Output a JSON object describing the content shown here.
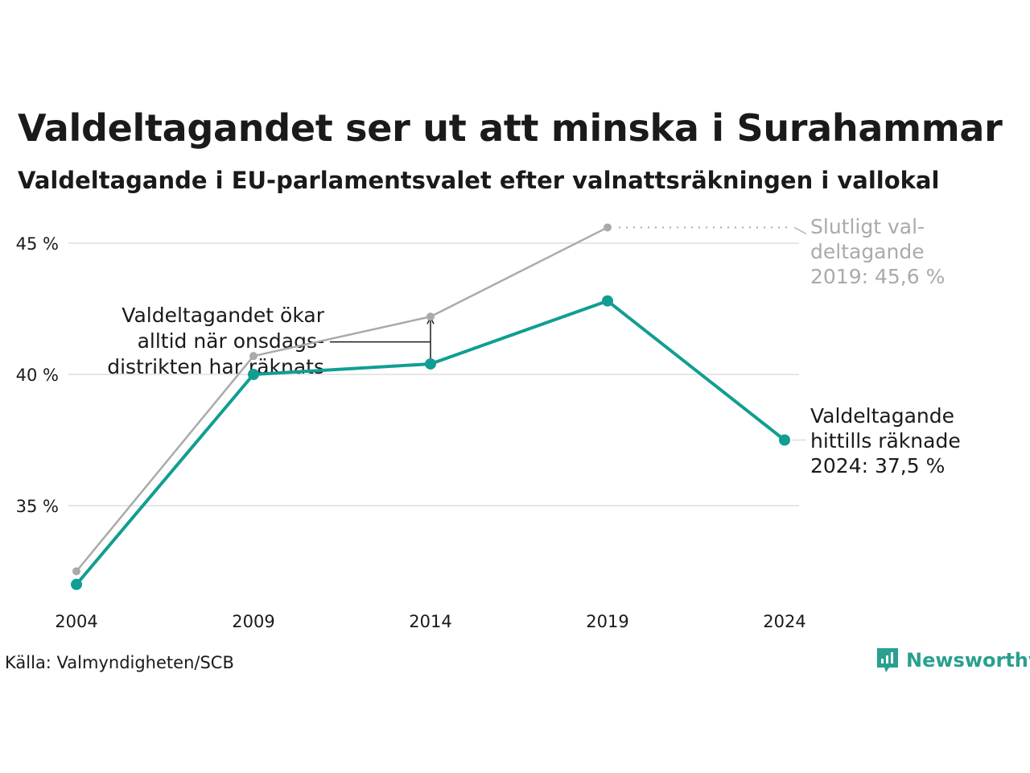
{
  "title": "Valdeltagandet ser ut att minska i Surahammar",
  "subtitle": "Valdeltagande i EU-parlamentsvalet efter valnattsräkningen i vallokal",
  "source": "Källa: Valmyndigheten/SCB",
  "brand": "Newsworthy",
  "colors": {
    "teal": "#119e92",
    "gray": "#aaaaaa",
    "grid": "#e6e6e6",
    "text": "#1a1a1a"
  },
  "chart_data": {
    "type": "line",
    "x": [
      "2004",
      "2009",
      "2014",
      "2019",
      "2024"
    ],
    "ylim": [
      31.2,
      46.4
    ],
    "yticks": [
      35,
      40,
      45
    ],
    "ytick_labels": [
      "35 %",
      "40 %",
      "45 %"
    ],
    "grid": true,
    "series": [
      {
        "key": "final",
        "values": [
          32.5,
          40.7,
          42.2,
          45.6,
          null
        ],
        "color": "#aaaaaa"
      },
      {
        "key": "counted",
        "values": [
          32.0,
          40.0,
          40.4,
          42.8,
          37.5
        ],
        "color": "#119e92"
      }
    ],
    "annotations": {
      "increase": [
        "Valdeltagandet ökar",
        "alltid när onsdags-",
        "distrikten har räknats"
      ],
      "final_2019": [
        "Slutligt val-",
        "deltagande",
        "2019: 45,6 %"
      ],
      "counted_2024": [
        "Valdeltagande",
        "hittills räknade",
        "2024: 37,5 %"
      ]
    }
  }
}
